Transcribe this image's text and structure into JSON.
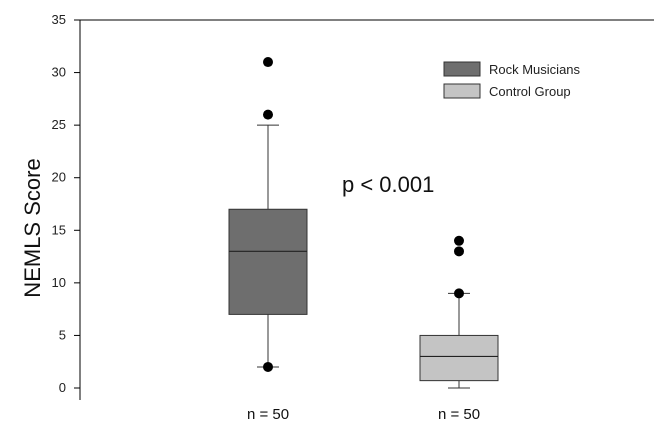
{
  "chart_data": {
    "type": "box",
    "ylabel": "NEMLS Score",
    "ylim": [
      0,
      35
    ],
    "yticks": [
      "0",
      "5",
      "10",
      "15",
      "20",
      "25",
      "30",
      "35"
    ],
    "annotation": "p < 0.001",
    "legend_position": "top-right",
    "series": [
      {
        "name": "Rock Musicians",
        "color": "#6e6e6e",
        "whisker_low": 2,
        "q1": 7,
        "median": 13,
        "q3": 17,
        "whisker_high": 25,
        "outliers": [
          26,
          31
        ],
        "n_label": "n = 50"
      },
      {
        "name": "Control Group",
        "color": "#c4c4c4",
        "whisker_low": 0,
        "q1": 0.7,
        "median": 3,
        "q3": 5,
        "whisker_high": 9,
        "outliers": [
          9,
          13,
          14
        ],
        "n_label": "n = 50"
      }
    ]
  }
}
